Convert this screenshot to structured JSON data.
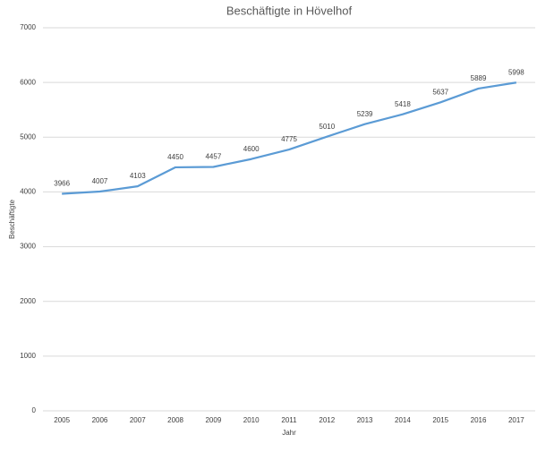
{
  "chart_data": {
    "type": "line",
    "title": "Beschäftigte in Hövelhof",
    "x_label": "Jahr",
    "y_label": "Beschäftigte",
    "categories": [
      "2005",
      "2006",
      "2007",
      "2008",
      "2009",
      "2010",
      "2011",
      "2012",
      "2013",
      "2014",
      "2015",
      "2016",
      "2017"
    ],
    "series": [
      {
        "name": "Beschäftigte",
        "color": "#5b9bd5",
        "values": [
          3966,
          4007,
          4103,
          4450,
          4457,
          4600,
          4775,
          5010,
          5239,
          5418,
          5637,
          5889,
          5998
        ]
      }
    ],
    "ylim": [
      0,
      7000
    ],
    "yticks": [
      0,
      1000,
      2000,
      3000,
      4000,
      5000,
      6000,
      7000
    ],
    "grid": true
  }
}
